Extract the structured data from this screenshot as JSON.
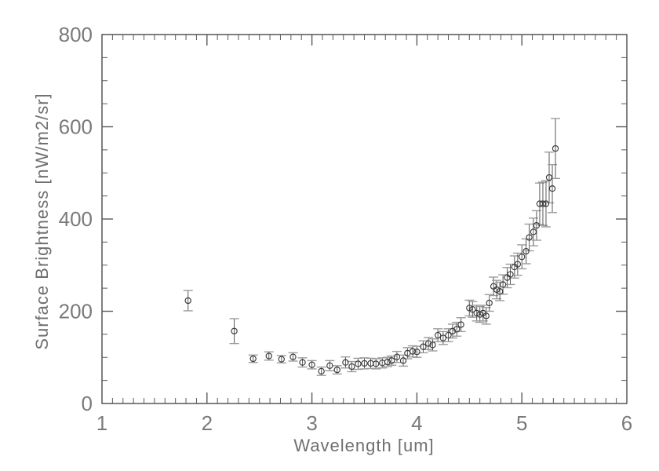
{
  "chart_data": {
    "type": "scatter",
    "marker": "open-circle",
    "error_bars": true,
    "title": "",
    "xlabel": "Wavelength [um]",
    "ylabel": "Surface Brightness [nW/m2/sr]",
    "xlim": [
      1,
      6
    ],
    "ylim": [
      0,
      800
    ],
    "x_major_ticks": [
      1,
      2,
      3,
      4,
      5,
      6
    ],
    "x_minor_step": 0.1,
    "y_major_ticks": [
      0,
      200,
      400,
      600,
      800
    ],
    "y_minor_step": 50,
    "grid": false,
    "legend": null,
    "frame": "box",
    "colors": {
      "marker": "#3a3a3a",
      "error_bar": "#585858",
      "error_cap": "#9c9c9c",
      "axis": "#2b2b2b",
      "tick": "#5a5a5a",
      "text": "#7a7a7a"
    },
    "points": [
      {
        "x": 1.82,
        "y": 223,
        "err": 22
      },
      {
        "x": 2.26,
        "y": 157,
        "err": 27
      },
      {
        "x": 2.44,
        "y": 97,
        "err": 8
      },
      {
        "x": 2.59,
        "y": 103,
        "err": 9
      },
      {
        "x": 2.71,
        "y": 96,
        "err": 8
      },
      {
        "x": 2.82,
        "y": 101,
        "err": 9
      },
      {
        "x": 2.91,
        "y": 89,
        "err": 10
      },
      {
        "x": 3.0,
        "y": 84,
        "err": 9
      },
      {
        "x": 3.09,
        "y": 70,
        "err": 9
      },
      {
        "x": 3.17,
        "y": 82,
        "err": 11
      },
      {
        "x": 3.24,
        "y": 73,
        "err": 9
      },
      {
        "x": 3.32,
        "y": 89,
        "err": 12
      },
      {
        "x": 3.38,
        "y": 80,
        "err": 11
      },
      {
        "x": 3.44,
        "y": 86,
        "err": 12
      },
      {
        "x": 3.5,
        "y": 87,
        "err": 12
      },
      {
        "x": 3.56,
        "y": 87,
        "err": 11
      },
      {
        "x": 3.61,
        "y": 86,
        "err": 11
      },
      {
        "x": 3.67,
        "y": 88,
        "err": 11
      },
      {
        "x": 3.72,
        "y": 90,
        "err": 10
      },
      {
        "x": 3.76,
        "y": 93,
        "err": 10
      },
      {
        "x": 3.81,
        "y": 101,
        "err": 12
      },
      {
        "x": 3.87,
        "y": 93,
        "err": 12
      },
      {
        "x": 3.91,
        "y": 109,
        "err": 12
      },
      {
        "x": 3.96,
        "y": 113,
        "err": 12
      },
      {
        "x": 4.0,
        "y": 112,
        "err": 12
      },
      {
        "x": 4.06,
        "y": 123,
        "err": 13
      },
      {
        "x": 4.11,
        "y": 130,
        "err": 13
      },
      {
        "x": 4.15,
        "y": 127,
        "err": 13
      },
      {
        "x": 4.2,
        "y": 148,
        "err": 14
      },
      {
        "x": 4.25,
        "y": 142,
        "err": 14
      },
      {
        "x": 4.3,
        "y": 148,
        "err": 14
      },
      {
        "x": 4.34,
        "y": 157,
        "err": 15
      },
      {
        "x": 4.38,
        "y": 161,
        "err": 15
      },
      {
        "x": 4.42,
        "y": 171,
        "err": 15
      },
      {
        "x": 4.5,
        "y": 207,
        "err": 17
      },
      {
        "x": 4.53,
        "y": 204,
        "err": 17
      },
      {
        "x": 4.57,
        "y": 196,
        "err": 17
      },
      {
        "x": 4.6,
        "y": 193,
        "err": 17
      },
      {
        "x": 4.63,
        "y": 196,
        "err": 17
      },
      {
        "x": 4.66,
        "y": 190,
        "err": 18
      },
      {
        "x": 4.69,
        "y": 218,
        "err": 18
      },
      {
        "x": 4.73,
        "y": 254,
        "err": 20
      },
      {
        "x": 4.76,
        "y": 247,
        "err": 20
      },
      {
        "x": 4.79,
        "y": 243,
        "err": 20
      },
      {
        "x": 4.82,
        "y": 258,
        "err": 21
      },
      {
        "x": 4.86,
        "y": 273,
        "err": 22
      },
      {
        "x": 4.89,
        "y": 280,
        "err": 22
      },
      {
        "x": 4.93,
        "y": 296,
        "err": 24
      },
      {
        "x": 4.96,
        "y": 302,
        "err": 24
      },
      {
        "x": 5.0,
        "y": 318,
        "err": 26
      },
      {
        "x": 5.04,
        "y": 330,
        "err": 27
      },
      {
        "x": 5.07,
        "y": 360,
        "err": 29
      },
      {
        "x": 5.11,
        "y": 372,
        "err": 30
      },
      {
        "x": 5.14,
        "y": 386,
        "err": 32
      },
      {
        "x": 5.17,
        "y": 433,
        "err": 45
      },
      {
        "x": 5.2,
        "y": 433,
        "err": 47
      },
      {
        "x": 5.23,
        "y": 433,
        "err": 50
      },
      {
        "x": 5.26,
        "y": 490,
        "err": 55
      },
      {
        "x": 5.29,
        "y": 466,
        "err": 52
      },
      {
        "x": 5.32,
        "y": 553,
        "err": 65
      }
    ]
  }
}
